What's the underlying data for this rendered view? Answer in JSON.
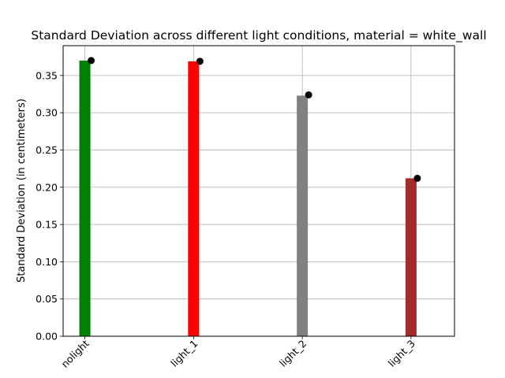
{
  "chart_data": {
    "type": "bar",
    "title": "Standard Deviation across different light conditions, material = white_wall",
    "xlabel": "",
    "ylabel": "Standard Deviation (in centimeters)",
    "categories": [
      "nolight",
      "light_1",
      "light_2",
      "light_3"
    ],
    "values": [
      0.37,
      0.369,
      0.323,
      0.212
    ],
    "markers": [
      0.37,
      0.369,
      0.324,
      0.212
    ],
    "bar_colors": [
      "#008000",
      "#ff0000",
      "#808080",
      "#a52a2a"
    ],
    "marker_color": "#000000",
    "ylim": [
      0,
      0.39
    ],
    "yticks": [
      "0.00",
      "0.05",
      "0.10",
      "0.15",
      "0.20",
      "0.25",
      "0.30",
      "0.35"
    ],
    "ytick_values": [
      0,
      0.05,
      0.1,
      0.15,
      0.2,
      0.25,
      0.3,
      0.35
    ],
    "grid": true,
    "legend": "none"
  }
}
